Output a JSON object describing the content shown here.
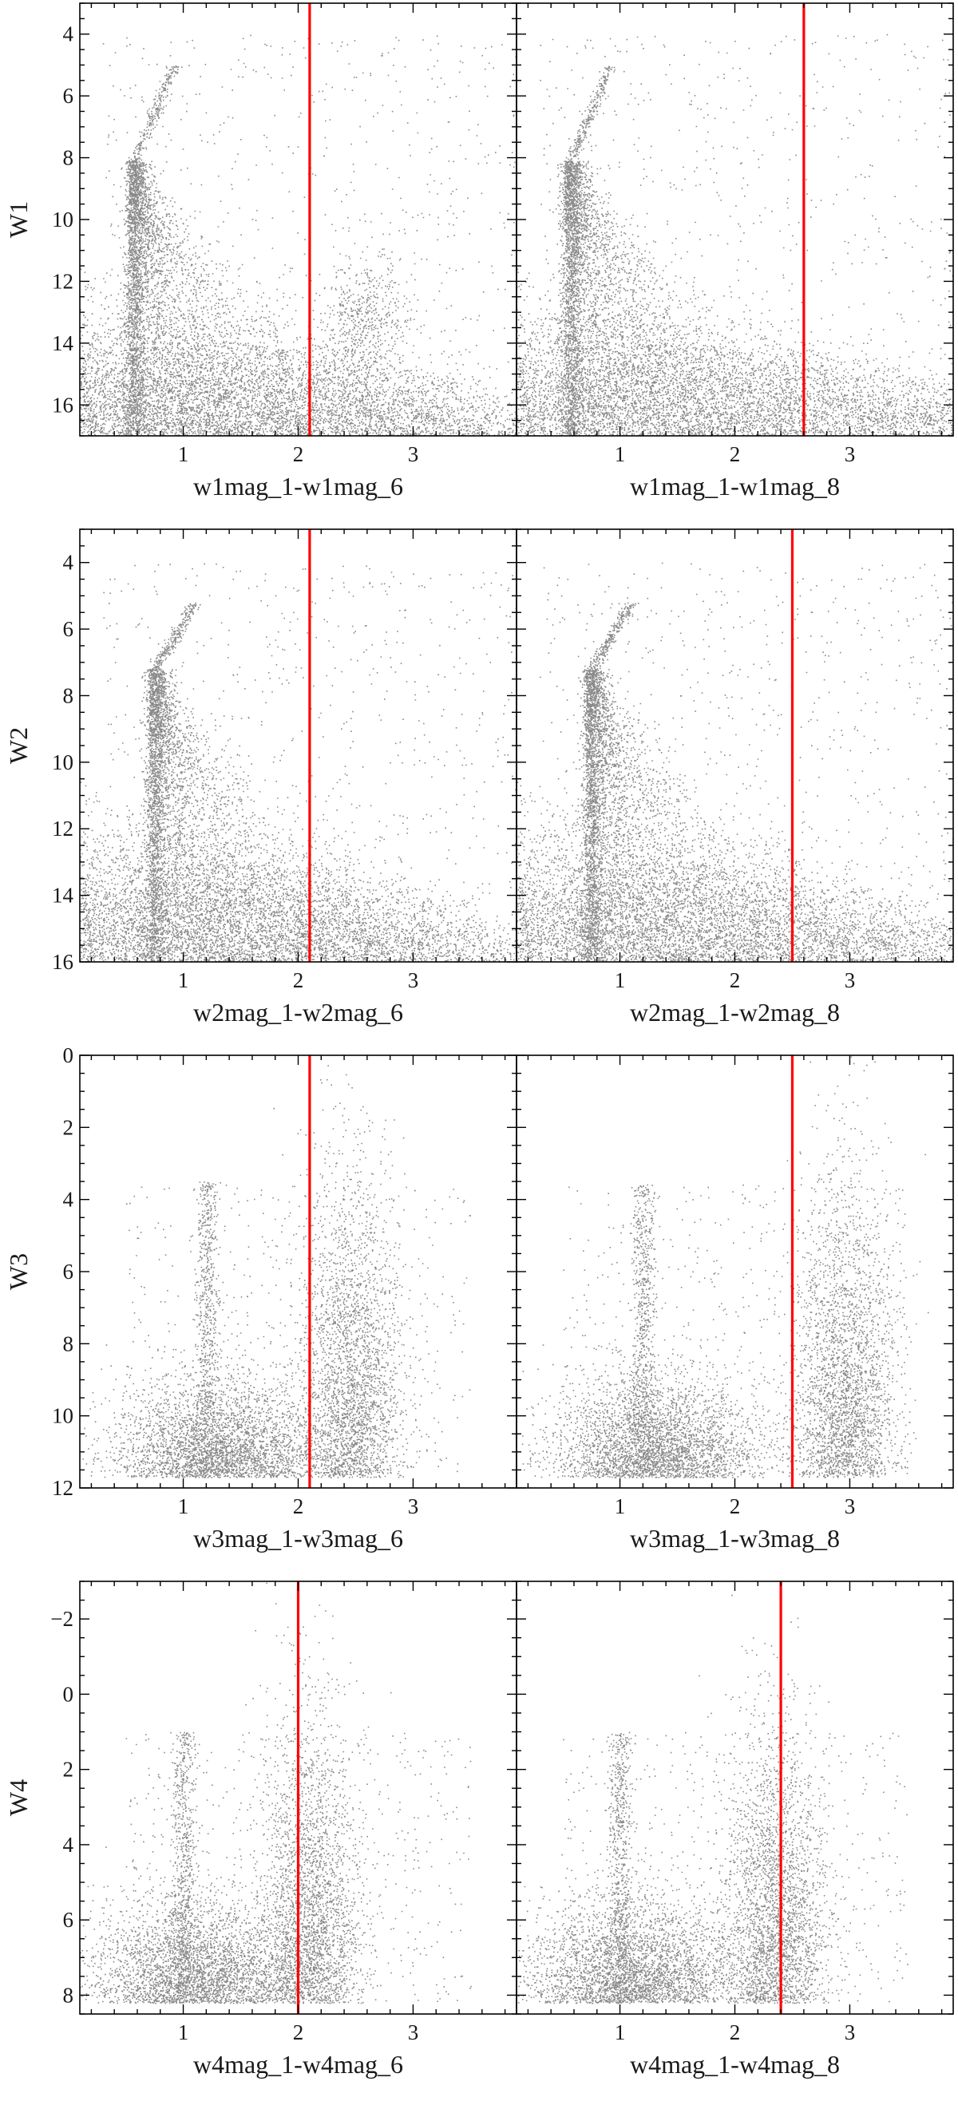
{
  "figure": {
    "point_color": "#8a8a8a",
    "cut_color": "#ff0000"
  },
  "chart_data": [
    {
      "type": "scatter",
      "row": "W1",
      "xlabel": "w1mag_1-w1mag_6",
      "ylabel": "W1",
      "xlim": [
        0.1,
        3.9
      ],
      "ylim": [
        17,
        3
      ],
      "xticks": [
        1,
        2,
        3
      ],
      "xtick_labels": [
        "1",
        "2",
        "3"
      ],
      "yticks": [
        4,
        6,
        8,
        10,
        12,
        14,
        16
      ],
      "ytick_labels": [
        "4",
        "6",
        "8",
        "10",
        "12",
        "14",
        "16"
      ],
      "cut_x": 2.1,
      "density": {
        "turnoff_mag": 8.1,
        "tip_mag": 5.0,
        "seq_color": 0.57,
        "faint_spread": 0.75,
        "blob": [
          2.6,
          13.2
        ],
        "faint_limit": 17
      }
    },
    {
      "type": "scatter",
      "row": "W1",
      "xlabel": "w1mag_1-w1mag_8",
      "ylabel": "",
      "xlim": [
        0.1,
        3.9
      ],
      "ylim": [
        17,
        3
      ],
      "xticks": [
        1,
        2,
        3
      ],
      "xtick_labels": [
        "1",
        "2",
        "3"
      ],
      "yticks": [
        4,
        6,
        8,
        10,
        12,
        14,
        16
      ],
      "ytick_labels": [],
      "cut_x": 2.6,
      "density": {
        "turnoff_mag": 8.1,
        "tip_mag": 5.0,
        "seq_color": 0.57,
        "faint_spread": 0.95,
        "blob": null,
        "faint_limit": 17
      }
    },
    {
      "type": "scatter",
      "row": "W2",
      "xlabel": "w2mag_1-w2mag_6",
      "ylabel": "W2",
      "xlim": [
        0.1,
        3.9
      ],
      "ylim": [
        16,
        3
      ],
      "xticks": [
        1,
        2,
        3
      ],
      "xtick_labels": [
        "1",
        "2",
        "3"
      ],
      "yticks": [
        4,
        6,
        8,
        10,
        12,
        14,
        16
      ],
      "ytick_labels": [
        "4",
        "6",
        "8",
        "10",
        "12",
        "14",
        "16"
      ],
      "cut_x": 2.1,
      "density": {
        "turnoff_mag": 7.2,
        "tip_mag": 5.2,
        "seq_color": 0.75,
        "faint_spread": 0.7,
        "blob": null,
        "faint_limit": 16
      }
    },
    {
      "type": "scatter",
      "row": "W2",
      "xlabel": "w2mag_1-w2mag_8",
      "ylabel": "",
      "xlim": [
        0.1,
        3.9
      ],
      "ylim": [
        16,
        3
      ],
      "xticks": [
        1,
        2,
        3
      ],
      "xtick_labels": [
        "1",
        "2",
        "3"
      ],
      "yticks": [
        4,
        6,
        8,
        10,
        12,
        14,
        16
      ],
      "ytick_labels": [],
      "cut_x": 2.5,
      "density": {
        "turnoff_mag": 7.2,
        "tip_mag": 5.2,
        "seq_color": 0.75,
        "faint_spread": 0.8,
        "blob": null,
        "faint_limit": 16
      }
    },
    {
      "type": "scatter",
      "row": "W3",
      "xlabel": "w3mag_1-w3mag_6",
      "ylabel": "W3",
      "xlim": [
        0.1,
        3.9
      ],
      "ylim": [
        12,
        0
      ],
      "xticks": [
        1,
        2,
        3
      ],
      "xtick_labels": [
        "1",
        "2",
        "3"
      ],
      "yticks": [
        0,
        2,
        4,
        6,
        8,
        10,
        12
      ],
      "ytick_labels": [
        "0",
        "2",
        "4",
        "6",
        "8",
        "10",
        "12"
      ],
      "cut_x": 2.1,
      "density": {
        "spike_color": 1.2,
        "spike_top": 3.5,
        "blob": [
          2.45,
          10.3
        ],
        "faint_limit": 11.7
      }
    },
    {
      "type": "scatter",
      "row": "W3",
      "xlabel": "w3mag_1-w3mag_8",
      "ylabel": "",
      "xlim": [
        0.1,
        3.9
      ],
      "ylim": [
        12,
        0
      ],
      "xticks": [
        1,
        2,
        3
      ],
      "xtick_labels": [
        "1",
        "2",
        "3"
      ],
      "yticks": [
        0,
        2,
        4,
        6,
        8,
        10,
        12
      ],
      "ytick_labels": [],
      "cut_x": 2.5,
      "density": {
        "spike_color": 1.2,
        "spike_top": 3.5,
        "blob": [
          2.95,
          10.5
        ],
        "faint_limit": 11.7
      }
    },
    {
      "type": "scatter",
      "row": "W4",
      "xlabel": "w4mag_1-w4mag_6",
      "ylabel": "W4",
      "xlim": [
        0.1,
        3.9
      ],
      "ylim": [
        8.5,
        -3
      ],
      "xticks": [
        1,
        2,
        3
      ],
      "xtick_labels": [
        "1",
        "2",
        "3"
      ],
      "yticks": [
        -2,
        0,
        2,
        4,
        6,
        8
      ],
      "ytick_labels": [
        "−2",
        "0",
        "2",
        "4",
        "6",
        "8"
      ],
      "cut_x": 2.0,
      "density": {
        "spike_color": 1.0,
        "spike_top": 1.0,
        "blob": [
          2.1,
          7.3
        ],
        "faint_limit": 8.2
      }
    },
    {
      "type": "scatter",
      "row": "W4",
      "xlabel": "w4mag_1-w4mag_8",
      "ylabel": "",
      "xlim": [
        0.1,
        3.9
      ],
      "ylim": [
        8.5,
        -3
      ],
      "xticks": [
        1,
        2,
        3
      ],
      "xtick_labels": [
        "1",
        "2",
        "3"
      ],
      "yticks": [
        -2,
        0,
        2,
        4,
        6,
        8
      ],
      "ytick_labels": [],
      "cut_x": 2.4,
      "density": {
        "spike_color": 1.0,
        "spike_top": 1.0,
        "blob": [
          2.35,
          7.4
        ],
        "faint_limit": 8.2
      }
    }
  ]
}
